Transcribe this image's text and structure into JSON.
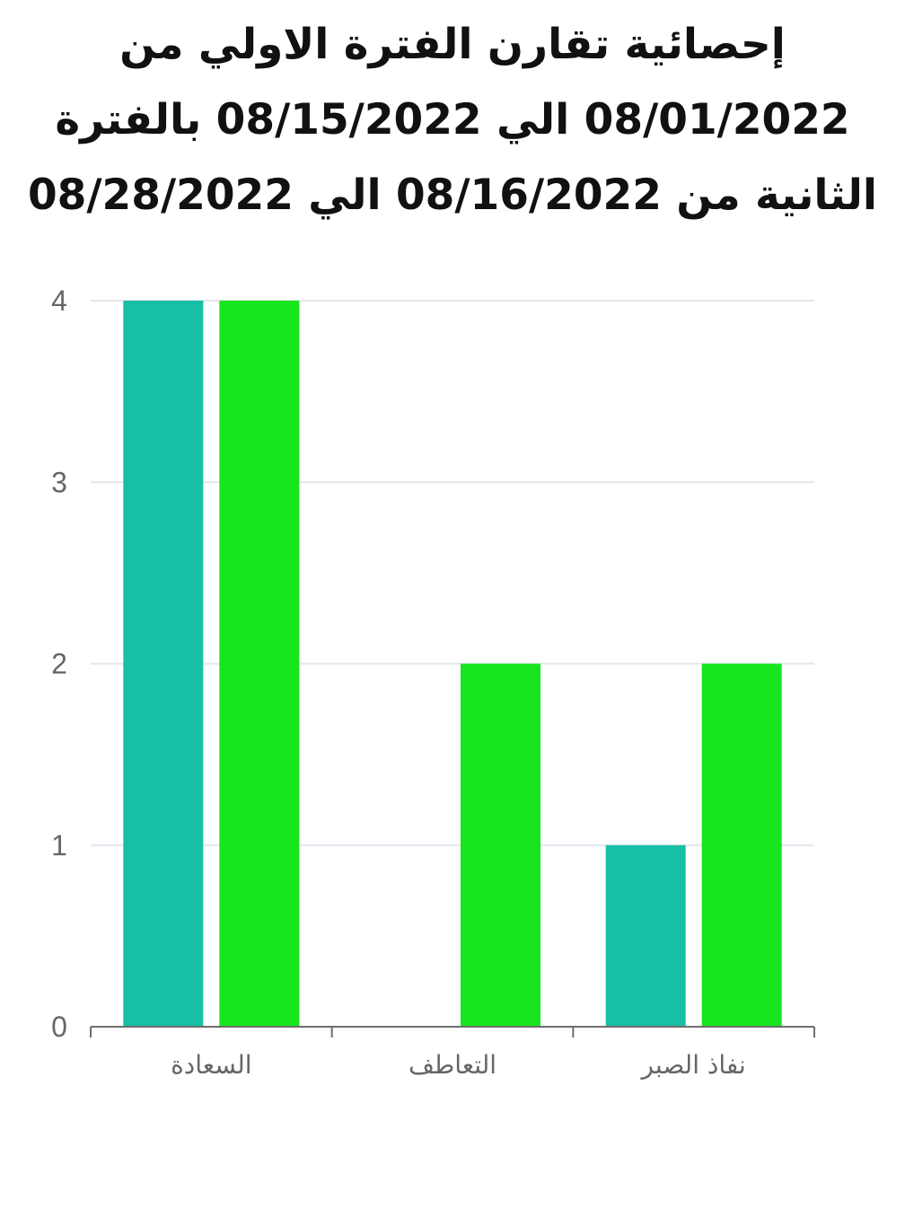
{
  "chart_data": {
    "type": "bar",
    "title": "إحصائية تقارن الفترة الاولي من 08/01/2022 الي 08/15/2022 بالفترة الثانية من 08/16/2022 الي 08/28/2022",
    "categories": [
      "السعادة",
      "التعاطف",
      "نفاذ الصبر"
    ],
    "series": [
      {
        "values": [
          4,
          0,
          1
        ],
        "color": "#17bfa6"
      },
      {
        "values": [
          4,
          2,
          2
        ],
        "color": "#17e51d"
      }
    ],
    "xlabel": "",
    "ylabel": "",
    "ylim": [
      0,
      4
    ],
    "yticks": [
      "0",
      "1",
      "2",
      "3",
      "4"
    ],
    "grid": true,
    "legend": "none"
  }
}
